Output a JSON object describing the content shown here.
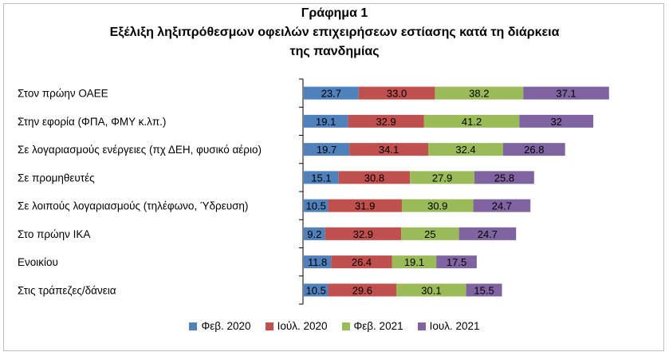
{
  "chart_data": {
    "type": "bar",
    "orientation": "horizontal",
    "stacked": true,
    "title": "Γράφημα 1",
    "subtitle_lines": [
      "Εξέλιξη ληξιπρόθεσμων οφειλών επιχειρήσεων εστίασης κατά τη διάρκεια",
      "της πανδημίας"
    ],
    "categories": [
      "Στον πρώην ΟΑΕΕ",
      "Στην εφορία (ΦΠΑ, ΦΜΥ κ.λπ.)",
      "Σε λογαριασμούς ενέργειες (πχ ΔΕΗ, φυσικό αέριο)",
      "Σε προμηθευτές",
      "Σε λοιπούς λογαριασμούς (τηλέφωνο, Ύδρευση)",
      "Στο πρώην ΙΚΑ",
      "Ενοικίου",
      "Στις τράπεζες/δάνεια"
    ],
    "series": [
      {
        "name": "Φεβ. 2020",
        "color": "#4f81bd",
        "values": [
          23.7,
          19.1,
          19.7,
          15.1,
          10.5,
          9.2,
          11.8,
          10.5
        ],
        "labels": [
          "23.7",
          "19.1",
          "19.7",
          "15.1",
          "10.5",
          "9.2",
          "11.8",
          "10.5"
        ]
      },
      {
        "name": "Ιούλ. 2020",
        "color": "#c0504d",
        "values": [
          33.0,
          32.9,
          34.1,
          30.8,
          31.9,
          32.9,
          26.4,
          29.6
        ],
        "labels": [
          "33.0",
          "32.9",
          "34.1",
          "30.8",
          "31.9",
          "32.9",
          "26.4",
          "29.6"
        ]
      },
      {
        "name": "Φεβ. 2021",
        "color": "#9bbb59",
        "values": [
          38.2,
          41.2,
          32.4,
          27.9,
          30.9,
          25,
          19.1,
          30.1
        ],
        "labels": [
          "38.2",
          "41.2",
          "32.4",
          "27.9",
          "30.9",
          "25",
          "19.1",
          "30.1"
        ]
      },
      {
        "name": "Ιουλ. 2021",
        "color": "#8064a2",
        "values": [
          37.1,
          32,
          26.8,
          25.8,
          24.7,
          24.7,
          17.5,
          15.5
        ],
        "labels": [
          "37.1",
          "32",
          "26.8",
          "25.8",
          "24.7",
          "24.7",
          "17.5",
          "15.5"
        ]
      }
    ],
    "xlim": [
      0,
      140
    ],
    "grid": false,
    "legend_position": "bottom"
  }
}
